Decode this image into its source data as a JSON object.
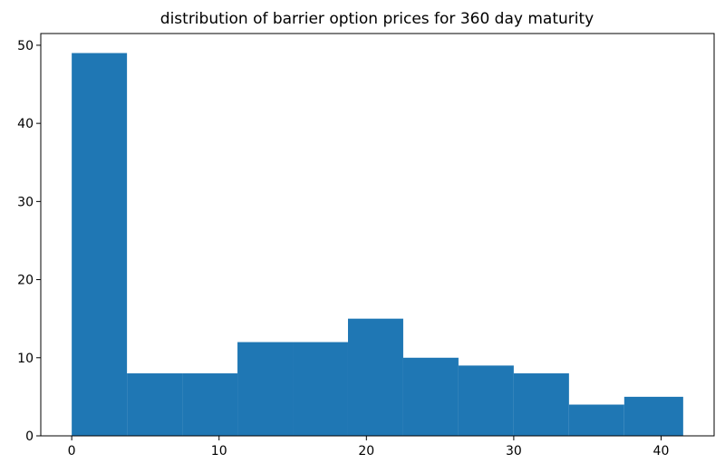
{
  "chart_data": {
    "type": "bar",
    "title": "distribution of barrier option prices for 360 day maturity",
    "xlabel": "",
    "ylabel": "",
    "bin_edges": [
      0,
      3.75,
      7.5,
      11.25,
      15.0,
      18.75,
      22.5,
      26.25,
      30.0,
      33.75,
      37.5,
      41.5
    ],
    "values": [
      49,
      8,
      8,
      12,
      12,
      15,
      10,
      9,
      8,
      4,
      5
    ],
    "xlim": [
      -2.1,
      43.6
    ],
    "ylim": [
      0,
      51.5
    ],
    "xticks": [
      0,
      10,
      20,
      30,
      40
    ],
    "yticks": [
      0,
      10,
      20,
      30,
      40,
      50
    ],
    "bar_color": "#1f77b4",
    "grid": false,
    "legend": "none"
  }
}
